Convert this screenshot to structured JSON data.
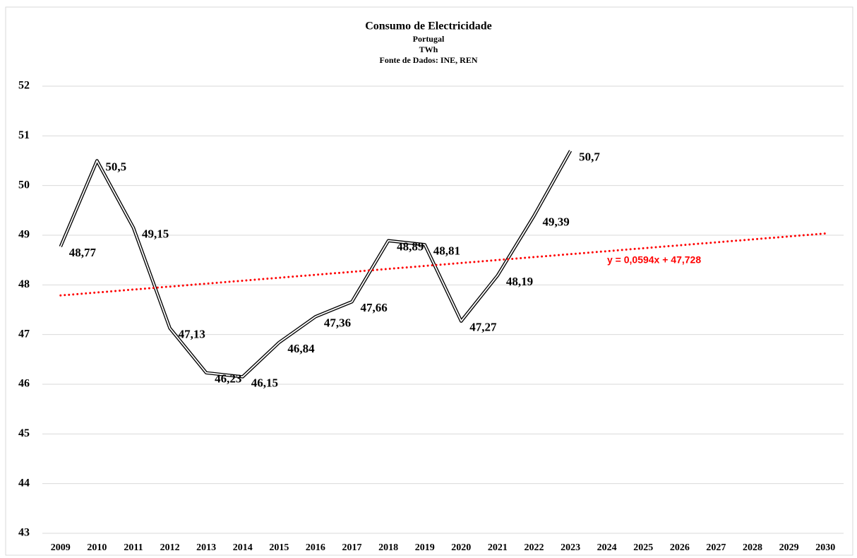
{
  "chart_data": {
    "type": "line",
    "title": "Consumo de Electricidade",
    "subtitle": [
      "Portugal",
      "TWh",
      "Fonte de Dados: INE, REN"
    ],
    "categories": [
      "2009",
      "2010",
      "2011",
      "2012",
      "2013",
      "2014",
      "2015",
      "2016",
      "2017",
      "2018",
      "2019",
      "2020",
      "2021",
      "2022",
      "2023",
      "2024",
      "2025",
      "2026",
      "2027",
      "2028",
      "2029",
      "2030"
    ],
    "series": [
      {
        "name": "Consumo",
        "color": "#000000",
        "values": [
          48.77,
          50.5,
          49.15,
          47.13,
          46.23,
          46.15,
          46.84,
          47.36,
          47.66,
          48.89,
          48.81,
          47.27,
          48.19,
          49.39,
          50.7,
          null,
          null,
          null,
          null,
          null,
          null,
          null
        ],
        "value_labels": [
          "48,77",
          "50,5",
          "49,15",
          "47,13",
          "46,23",
          "46,15",
          "46,84",
          "47,36",
          "47,66",
          "48,89",
          "48,81",
          "47,27",
          "48,19",
          "49,39",
          "50,7",
          null,
          null,
          null,
          null,
          null,
          null,
          null
        ]
      }
    ],
    "trendline": {
      "color": "#ff0000",
      "slope": 0.0594,
      "intercept": 47.728,
      "label": "y = 0,0594x + 47,728"
    },
    "ylim": [
      43,
      52
    ],
    "yticks": [
      43,
      44,
      45,
      46,
      47,
      48,
      49,
      50,
      51,
      52
    ],
    "grid": true
  }
}
